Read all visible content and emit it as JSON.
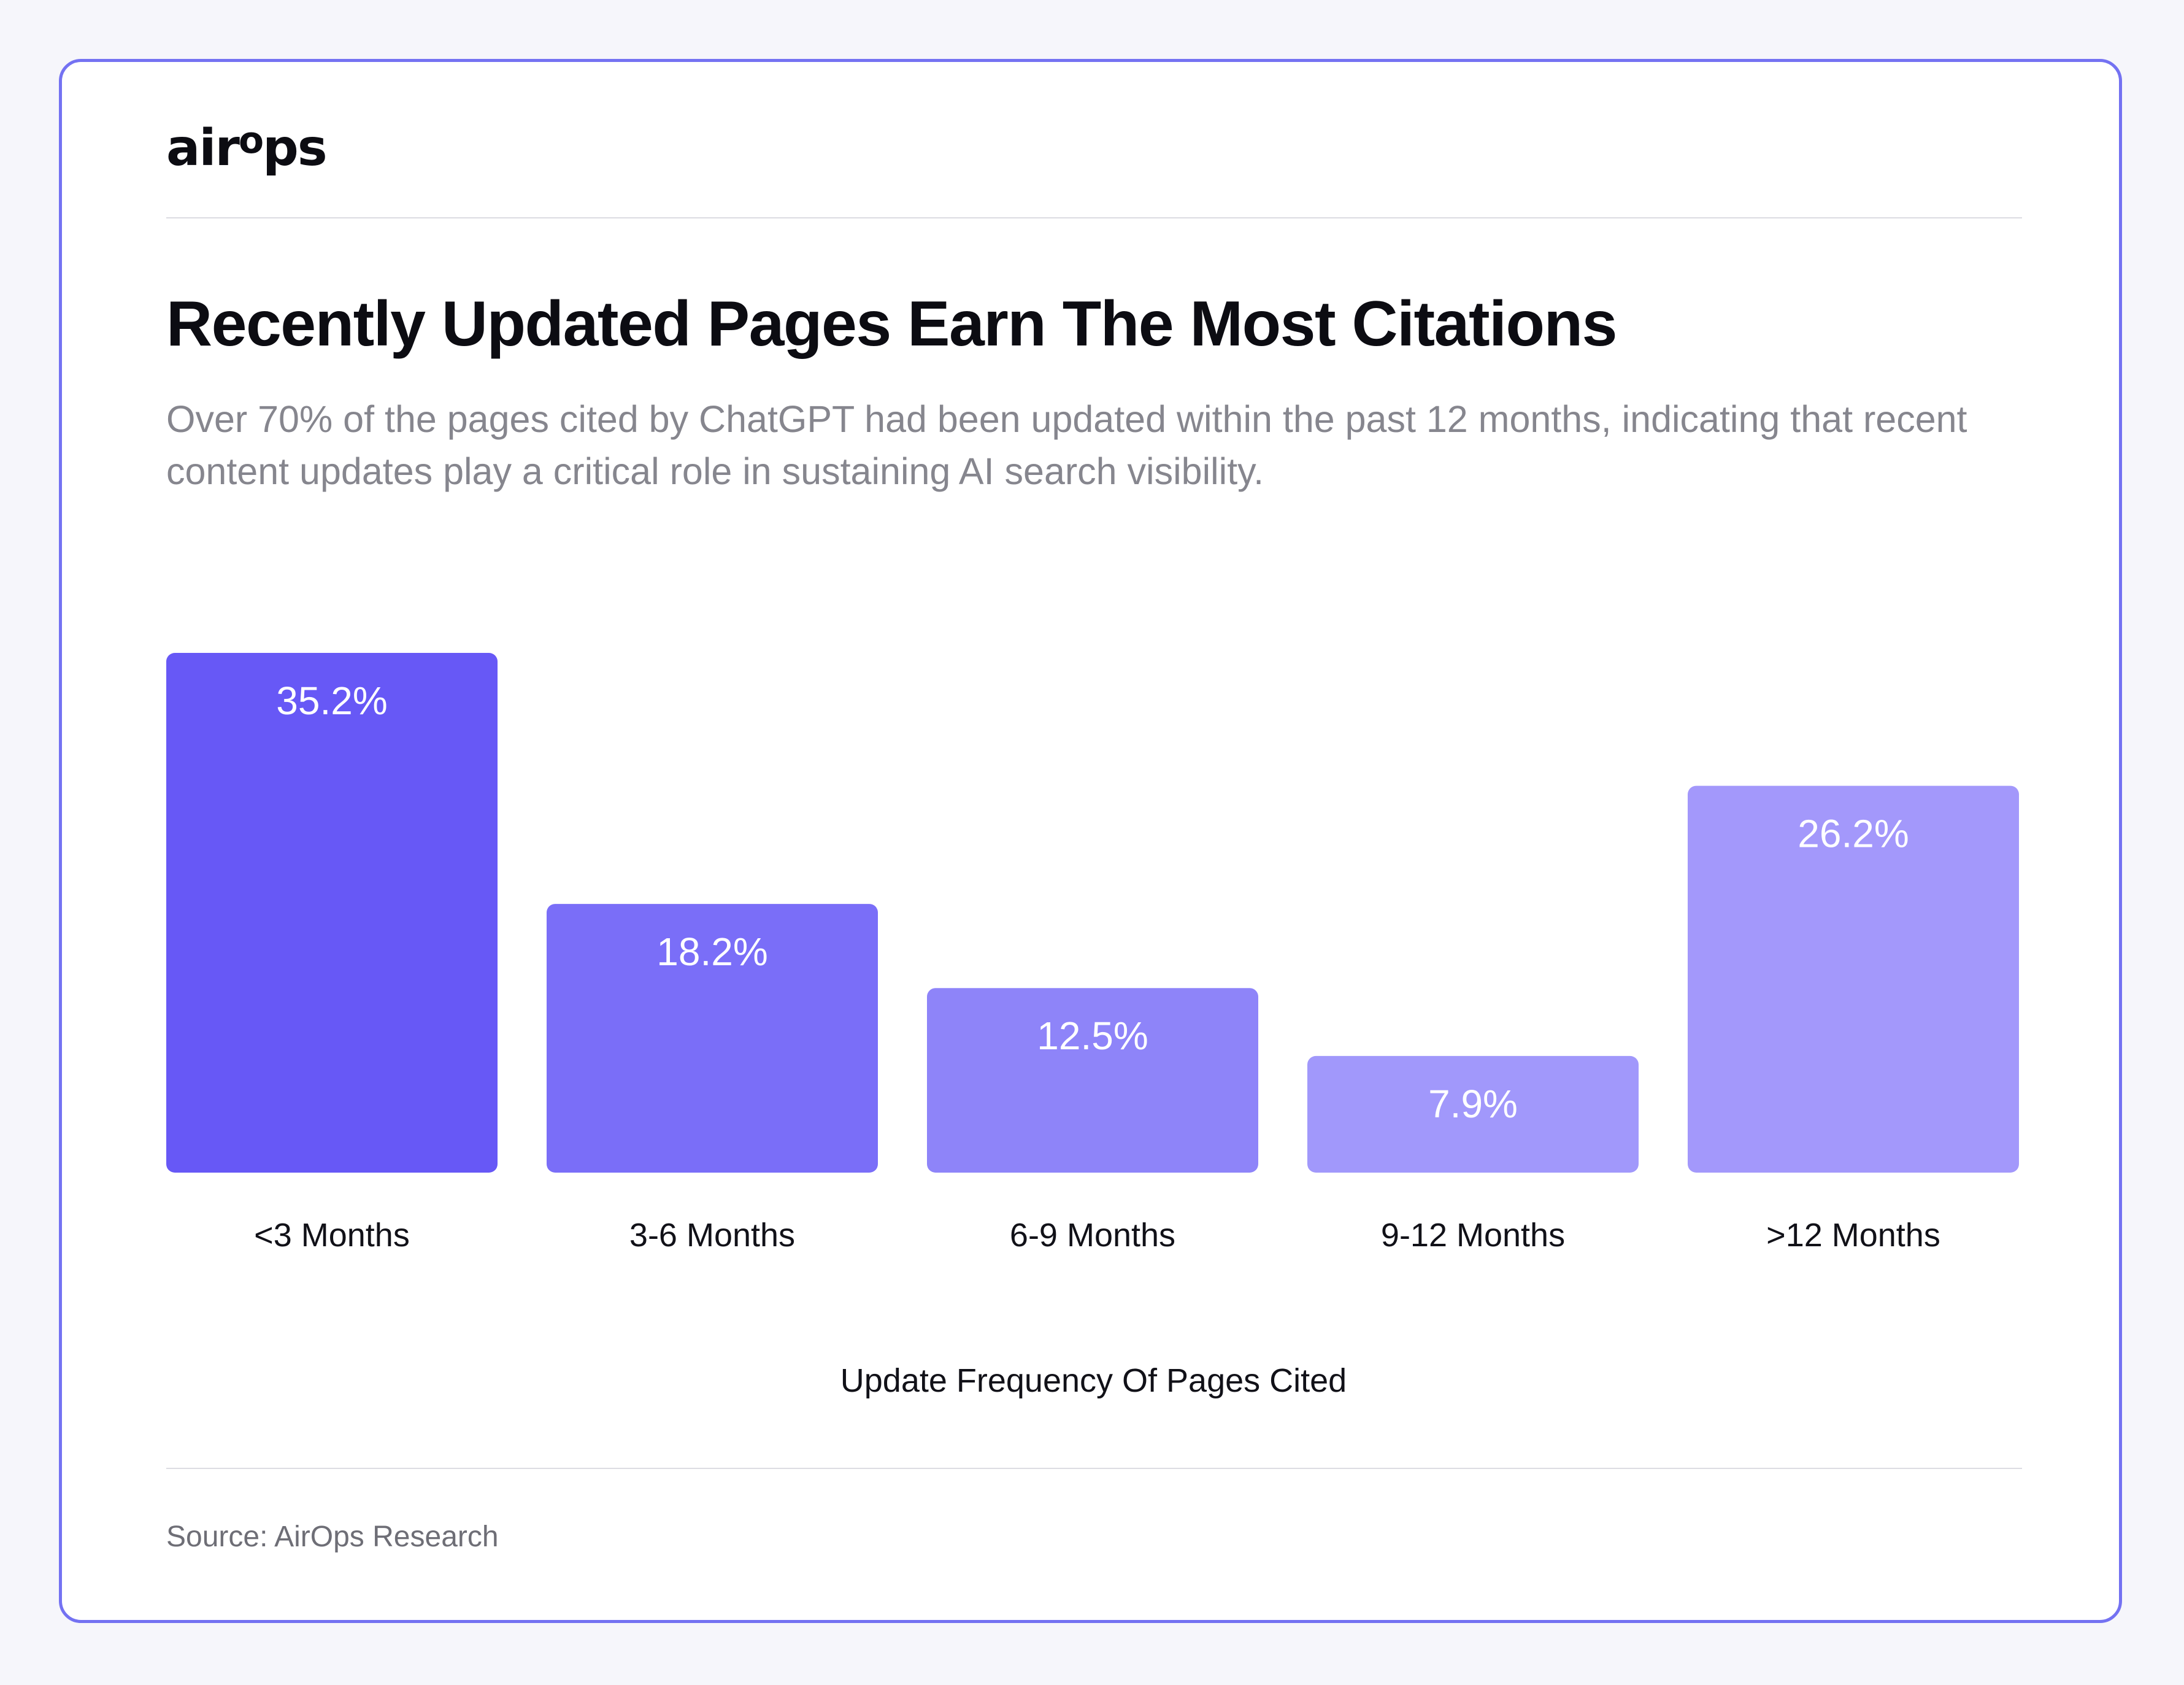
{
  "brand": {
    "logo_main": "air",
    "logo_sup": "o",
    "logo_end": "ps"
  },
  "title": "Recently Updated Pages Earn The Most Citations",
  "subtitle": "Over 70% of the pages cited by ChatGPT had been updated within the past 12 months, indicating that recent content updates play a critical role in sustaining AI search visibility.",
  "source": "Source: AirOps Research",
  "chart_data": {
    "type": "bar",
    "title": "Recently Updated Pages Earn The Most Citations",
    "xlabel": "Update Frequency Of Pages Cited",
    "ylabel": "",
    "categories": [
      "<3 Months",
      "3-6 Months",
      "6-9 Months",
      "9-12 Months",
      ">12 Months"
    ],
    "values": [
      35.2,
      18.2,
      12.5,
      7.9,
      26.2
    ],
    "value_labels": [
      "35.2%",
      "18.2%",
      "12.5%",
      "7.9%",
      "26.2%"
    ],
    "unit": "%",
    "ylim": [
      0,
      35.2
    ],
    "grid": false,
    "legend": "none",
    "colors": [
      "#6758f6",
      "#7a6ef8",
      "#8e84f9",
      "#a198fb",
      "#a398fb"
    ]
  }
}
